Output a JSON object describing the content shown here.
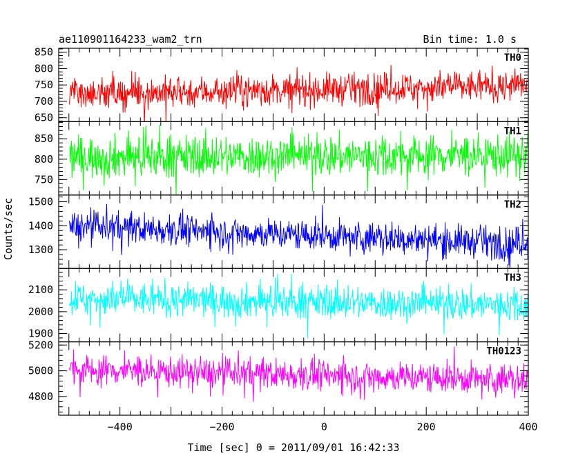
{
  "header": {
    "left_title": "ae110901164233_wam2_trn",
    "right_title": "Bin time: 1.0 s"
  },
  "chart_data": {
    "type": "line",
    "x": {
      "label": "Time [sec] 0 = 2011/09/01 16:42:33",
      "range": [
        -520,
        400
      ],
      "ticks": [
        -400,
        -200,
        0,
        200,
        400
      ],
      "data_start": -499,
      "data_end": 399,
      "step": 1
    },
    "ylabel": "Counts/sec",
    "series": [
      {
        "name": "TH0",
        "color": "#ff0000",
        "ylim": [
          638,
          862
        ],
        "yticks": [
          650,
          700,
          750,
          800,
          850
        ],
        "mean_start": 722,
        "mean_end": 748,
        "amplitude": 28,
        "spike": 55
      },
      {
        "name": "TH1",
        "color": "#00ff00",
        "ylim": [
          712,
          892
        ],
        "yticks": [
          750,
          800,
          850
        ],
        "mean_start": 805,
        "mean_end": 810,
        "amplitude": 30,
        "spike": 65
      },
      {
        "name": "TH2",
        "color": "#0000ff",
        "ylim": [
          1222,
          1528
        ],
        "yticks": [
          1300,
          1400,
          1500
        ],
        "mean_start": 1400,
        "mean_end": 1325,
        "amplitude": 38,
        "spike": 85
      },
      {
        "name": "TH3",
        "color": "#00ffff",
        "ylim": [
          1862,
          2198
        ],
        "yticks": [
          1900,
          2000,
          2100
        ],
        "mean_start": 2060,
        "mean_end": 2030,
        "amplitude": 45,
        "spike": 110
      },
      {
        "name": "TH0123",
        "color": "#ff00ff",
        "ylim": [
          4655,
          5225
        ],
        "yticks": [
          4800,
          5000,
          5200
        ],
        "mean_start": 5010,
        "mean_end": 4930,
        "amplitude": 70,
        "spike": 170
      }
    ]
  }
}
